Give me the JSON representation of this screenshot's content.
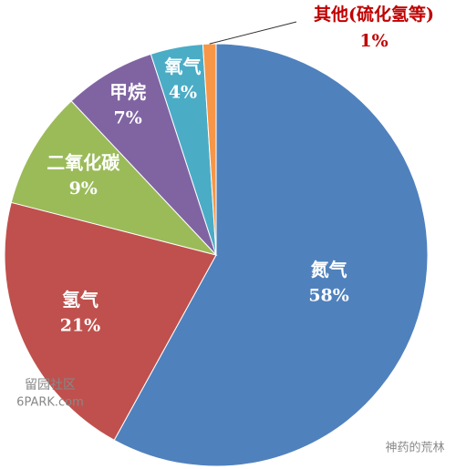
{
  "chart_data": {
    "type": "pie",
    "categories": [
      "氮气",
      "氢气",
      "二氧化碳",
      "甲烷",
      "氧气",
      "其他(硫化氢等)"
    ],
    "values": [
      58,
      21,
      9,
      7,
      4,
      1
    ],
    "value_labels": [
      "58%",
      "21%",
      "9%",
      "7%",
      "4%",
      "1%"
    ],
    "colors": [
      "#4f81bd",
      "#c0504d",
      "#9bbb59",
      "#8064a2",
      "#4bacc6",
      "#f79646"
    ]
  },
  "watermarks": [
    "留园社区",
    "6PARK.com",
    "神药的荒林"
  ]
}
